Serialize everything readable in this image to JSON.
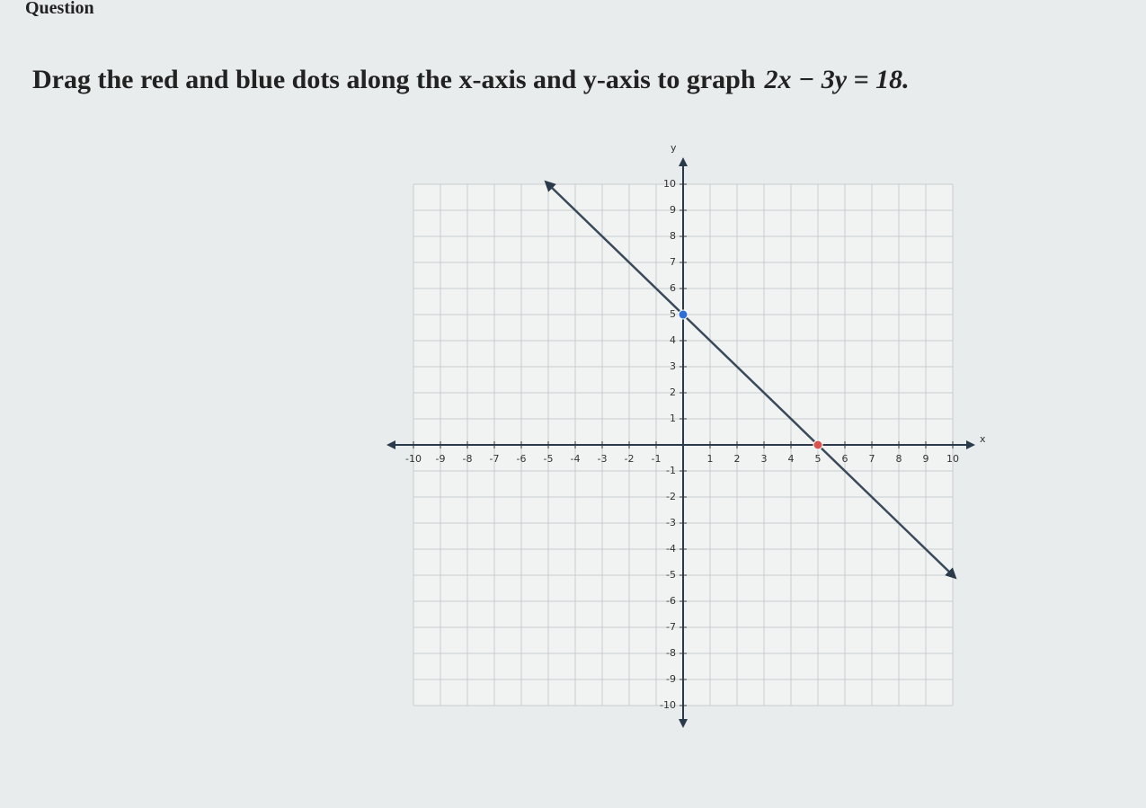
{
  "header": {
    "title": "Question"
  },
  "prompt": {
    "text": "Drag the red and blue dots along the x-axis and y-axis to graph",
    "equation": "2x − 3y = 18."
  },
  "graph": {
    "x_label": "x",
    "y_label": "y",
    "xlim": [
      -10,
      10
    ],
    "ylim": [
      -10,
      10
    ],
    "xticks": [
      -10,
      -9,
      -8,
      -7,
      -6,
      -5,
      -4,
      -3,
      -2,
      -1,
      1,
      2,
      3,
      4,
      5,
      6,
      7,
      8,
      9,
      10
    ],
    "yticks": [
      -10,
      -9,
      -8,
      -7,
      -6,
      -5,
      -4,
      -3,
      -2,
      -1,
      1,
      2,
      3,
      4,
      5,
      6,
      7,
      8,
      9,
      10
    ],
    "grid": true,
    "line_color": "#3a4a5a",
    "points": [
      {
        "x": 5,
        "y": 0,
        "color": "#d9534f"
      },
      {
        "x": 0,
        "y": 5,
        "color": "#2f6fd6"
      }
    ]
  }
}
